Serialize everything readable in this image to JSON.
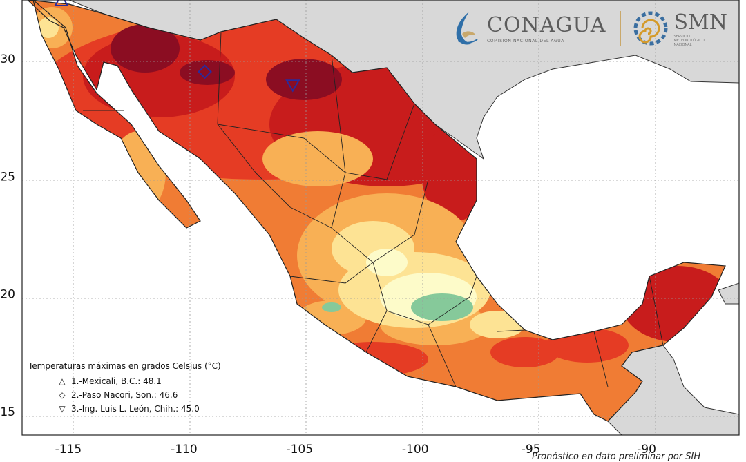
{
  "map": {
    "x_ticks": [
      "-115",
      "-110",
      "-105",
      "-100",
      "-95",
      "-90"
    ],
    "y_ticks": [
      "30",
      "25",
      "20",
      "15"
    ],
    "x_range": [
      -117,
      -86
    ],
    "y_range": [
      14,
      32.5
    ],
    "colors": {
      "ocean": "#ffffff",
      "land_other": "#d8d8d8",
      "hot_dark": "#8b0d22",
      "hot": "#c81c1c",
      "warm_red": "#e53c24",
      "warm_orange": "#f07c34",
      "orange_light": "#f8b055",
      "yellow": "#fde394",
      "pale": "#fdfbc9",
      "green": "#86c99a"
    }
  },
  "logos": {
    "conagua_name": "CONAGUA",
    "conagua_subtitle": "COMISIÓN NACIONAL DEL AGUA",
    "smn_name": "SMN",
    "smn_subtitle": [
      "SERVICIO",
      "METEOROLÓGICO",
      "NACIONAL"
    ]
  },
  "legend": {
    "title": "Temperaturas máximas en grados Celsius (°C)",
    "entries": [
      {
        "symbol": "△",
        "label": "1.-Mexicali, B.C.: 48.1"
      },
      {
        "symbol": "◇",
        "label": "2.-Paso Nacori, Son.: 46.6"
      },
      {
        "symbol": "▽",
        "label": "3.-Ing. Luis L. León, Chih.: 45.0"
      }
    ]
  },
  "markers": [
    {
      "name": "mexicali-marker",
      "lon": -115.3,
      "lat": 32.45,
      "shape": "triangle-up"
    },
    {
      "name": "paso-nacori-marker",
      "lon": -109.1,
      "lat": 29.45,
      "shape": "diamond"
    },
    {
      "name": "luis-leon-marker",
      "lon": -105.3,
      "lat": 28.9,
      "shape": "triangle-down"
    }
  ],
  "credit": "Pronóstico en dato preliminar por SIH"
}
